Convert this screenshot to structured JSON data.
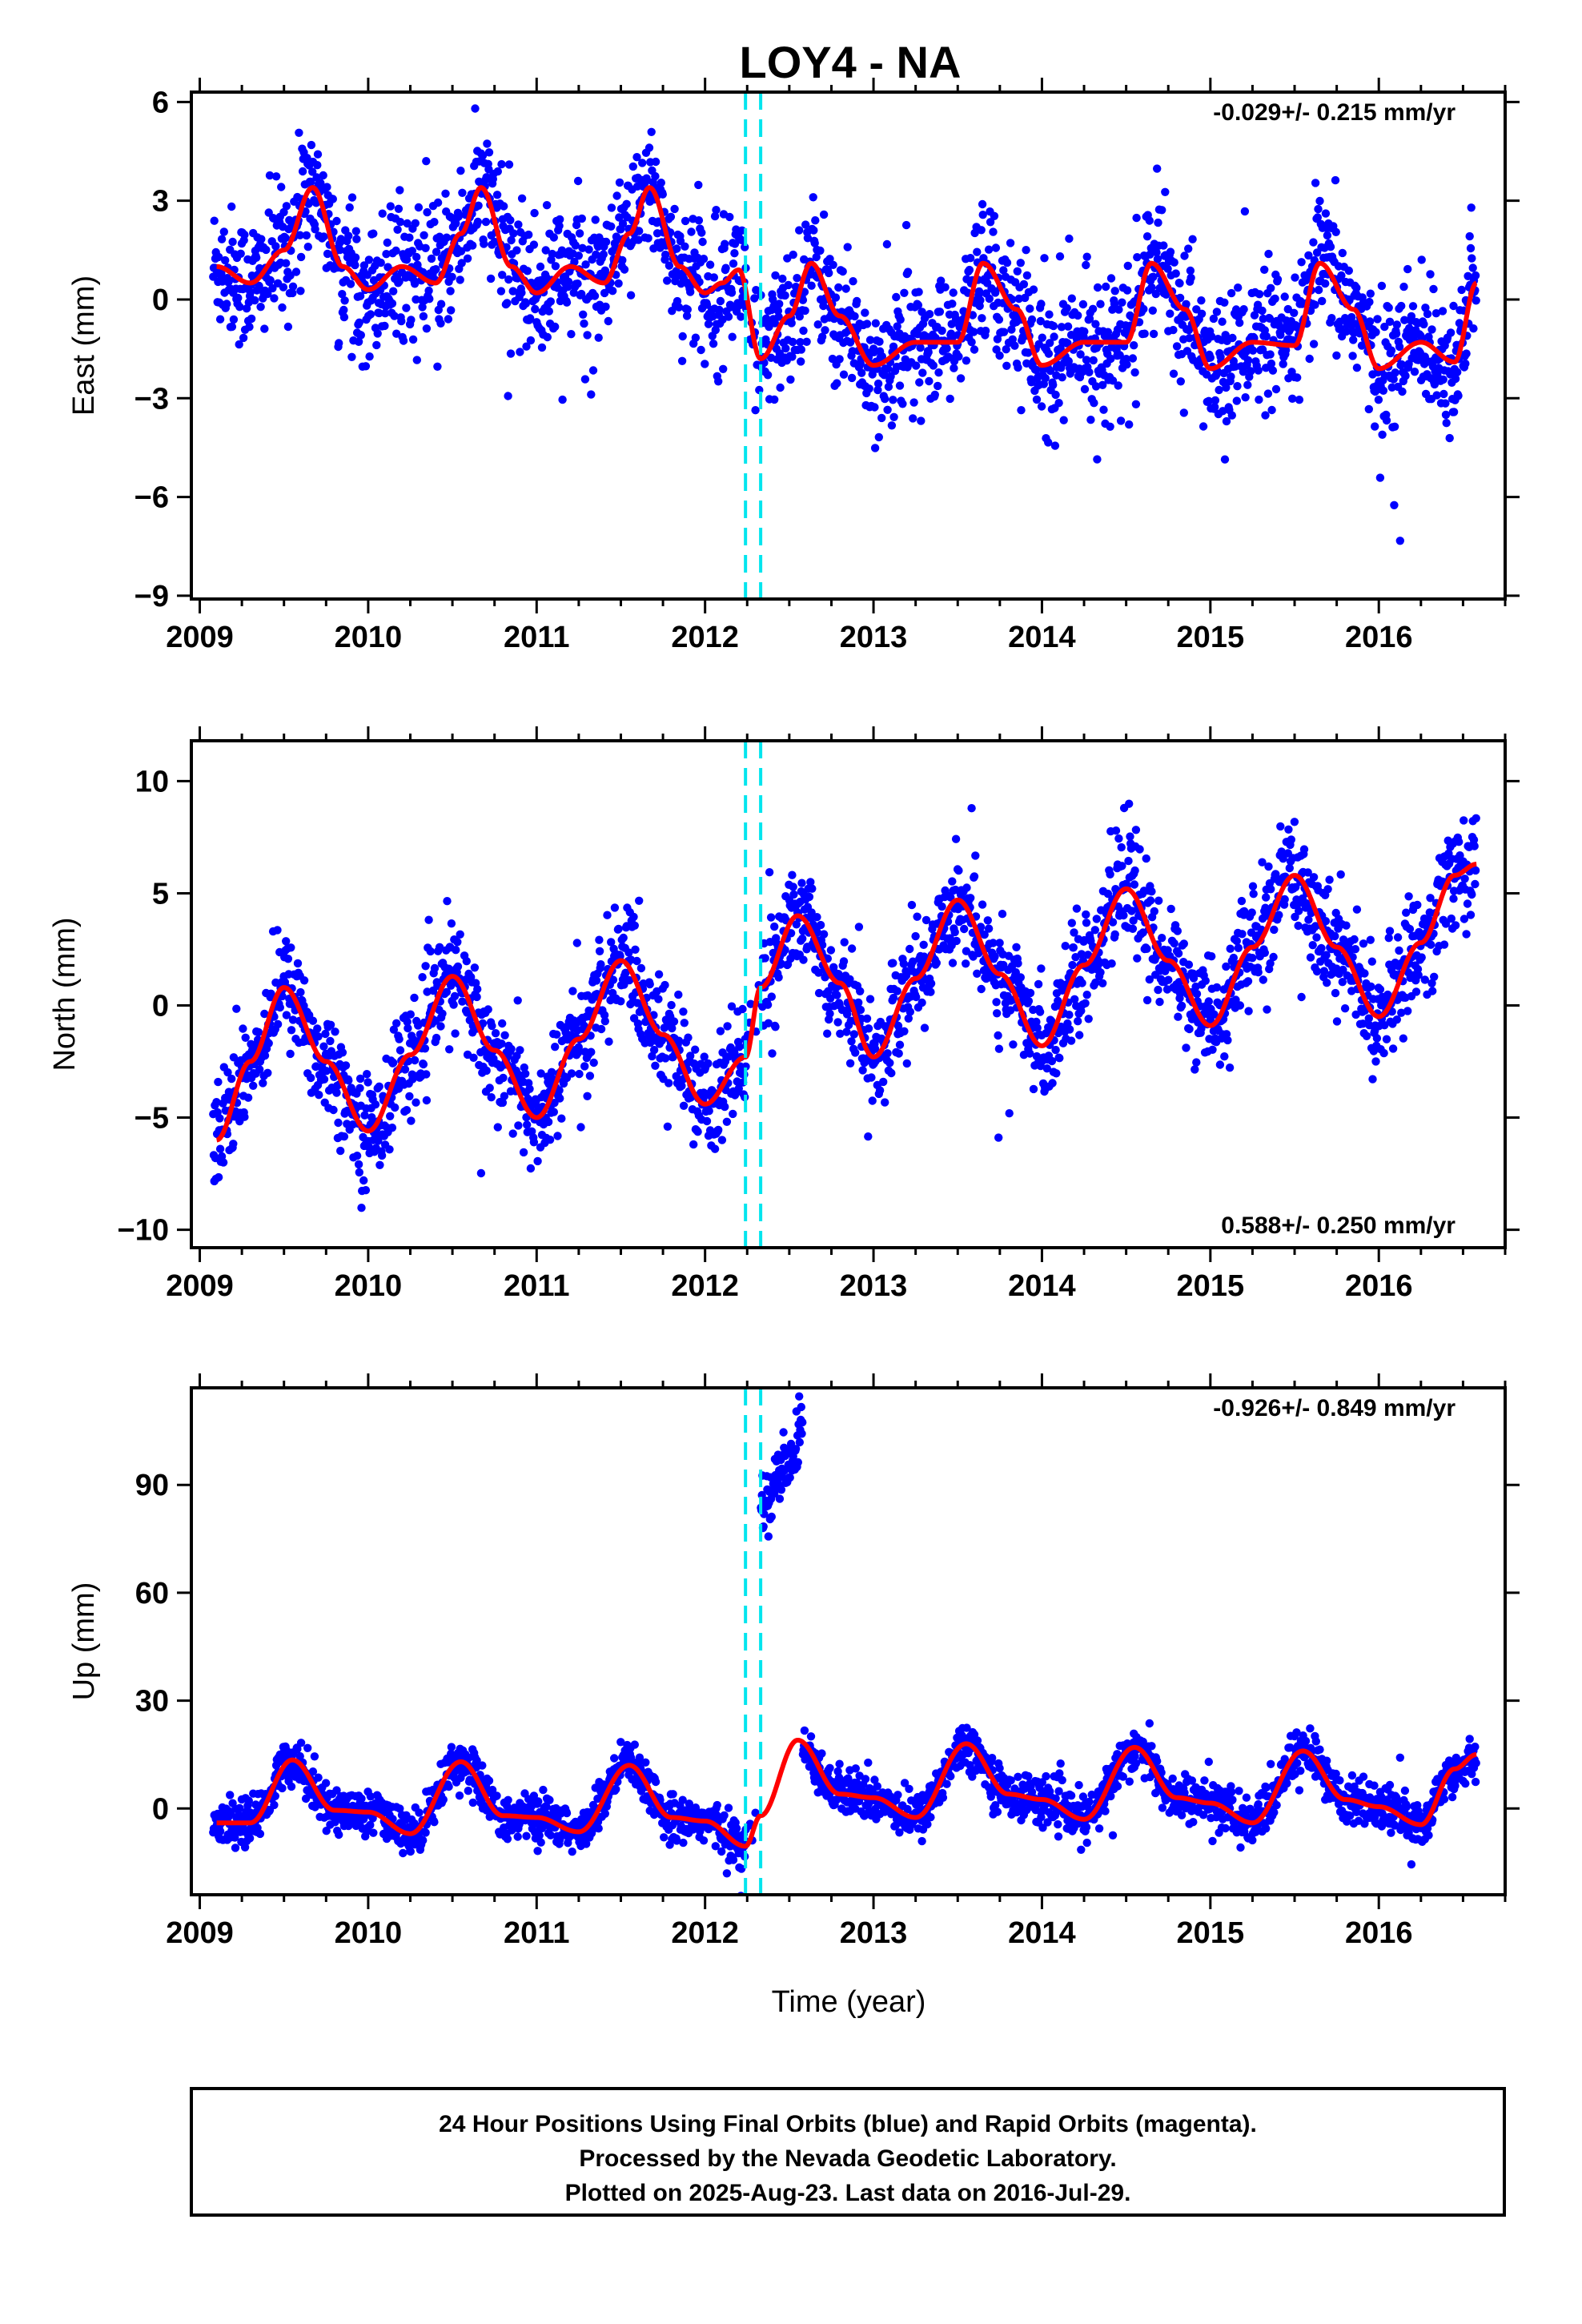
{
  "title": "LOY4 - NA",
  "xlabel": "Time (year)",
  "footer": {
    "line1": "24 Hour Positions Using Final Orbits (blue) and Rapid Orbits (magenta).",
    "line2": "Processed by the Nevada Geodetic Laboratory.",
    "line3": "Plotted on 2025-Aug-23. Last data on 2016-Jul-29."
  },
  "colors": {
    "points": "#0000ff",
    "model": "#ff0000",
    "steps": "#00e5ee",
    "frame": "#000000"
  },
  "chart_data": [
    {
      "type": "scatter",
      "component": "east",
      "ylabel": "East (mm)",
      "rate_text": "-0.029+/- 0.215 mm/yr",
      "xlim": [
        2008.95,
        2016.75
      ],
      "ylim": [
        -9.1,
        6.3
      ],
      "xticks": [
        2009,
        2010,
        2011,
        2012,
        2013,
        2014,
        2015,
        2016
      ],
      "yticks": [
        -9,
        -6,
        -3,
        0,
        3,
        6
      ],
      "ytick_labels": [
        "−9",
        "−6",
        "−3",
        "0",
        "3",
        "6"
      ],
      "step_lines": [
        2012.24,
        2012.33
      ],
      "model": {
        "x": [
          2009.1,
          2009.3,
          2009.5,
          2009.67,
          2009.85,
          2010.0,
          2010.2,
          2010.4,
          2010.55,
          2010.67,
          2010.85,
          2011.0,
          2011.2,
          2011.4,
          2011.55,
          2011.67,
          2011.85,
          2012.0,
          2012.1,
          2012.2,
          2012.33,
          2012.5,
          2012.63,
          2012.8,
          2013.0,
          2013.25,
          2013.5,
          2013.65,
          2013.85,
          2014.0,
          2014.25,
          2014.5,
          2014.65,
          2014.85,
          2015.0,
          2015.25,
          2015.5,
          2015.65,
          2015.85,
          2016.0,
          2016.25,
          2016.45,
          2016.58
        ],
        "y": [
          1.0,
          0.5,
          1.5,
          3.4,
          1.0,
          0.3,
          1.0,
          0.5,
          2.0,
          3.4,
          1.0,
          0.2,
          1.0,
          0.5,
          2.0,
          3.4,
          1.0,
          0.2,
          0.5,
          0.9,
          -1.8,
          -0.5,
          1.1,
          -0.5,
          -2.0,
          -1.3,
          -1.3,
          1.1,
          -0.3,
          -2.0,
          -1.3,
          -1.3,
          1.1,
          -0.3,
          -2.1,
          -1.3,
          -1.4,
          1.1,
          -0.3,
          -2.1,
          -1.3,
          -1.9,
          0.5
        ]
      }
    },
    {
      "type": "scatter",
      "component": "north",
      "ylabel": "North (mm)",
      "rate_text": "0.588+/- 0.250 mm/yr",
      "xlim": [
        2008.95,
        2016.75
      ],
      "ylim": [
        -10.8,
        11.8
      ],
      "xticks": [
        2009,
        2010,
        2011,
        2012,
        2013,
        2014,
        2015,
        2016
      ],
      "yticks": [
        -10,
        -5,
        0,
        5,
        10
      ],
      "ytick_labels": [
        "−10",
        "−5",
        "0",
        "5",
        "10"
      ],
      "step_lines": [
        2012.24,
        2012.33
      ],
      "model": {
        "x": [
          2009.1,
          2009.3,
          2009.5,
          2009.75,
          2010.0,
          2010.25,
          2010.5,
          2010.75,
          2011.0,
          2011.25,
          2011.5,
          2011.75,
          2012.0,
          2012.24,
          2012.33,
          2012.55,
          2012.8,
          2013.0,
          2013.25,
          2013.5,
          2013.75,
          2014.0,
          2014.25,
          2014.5,
          2014.75,
          2015.0,
          2015.25,
          2015.5,
          2015.75,
          2016.0,
          2016.25,
          2016.45,
          2016.58
        ],
        "y": [
          -6.0,
          -2.5,
          0.8,
          -2.5,
          -5.6,
          -2.2,
          1.3,
          -2.0,
          -5.0,
          -1.5,
          2.0,
          -1.3,
          -4.4,
          -2.3,
          0.8,
          4.0,
          1.0,
          -2.3,
          1.2,
          4.7,
          1.4,
          -1.8,
          1.8,
          5.2,
          2.0,
          -0.9,
          2.6,
          5.8,
          2.6,
          -0.5,
          2.8,
          5.8,
          6.3
        ]
      }
    },
    {
      "type": "scatter",
      "component": "up",
      "ylabel": "Up (mm)",
      "rate_text": "-0.926+/- 0.849 mm/yr",
      "xlim": [
        2008.95,
        2016.75
      ],
      "ylim": [
        -24,
        117
      ],
      "xticks": [
        2009,
        2010,
        2011,
        2012,
        2013,
        2014,
        2015,
        2016
      ],
      "yticks": [
        0,
        30,
        60,
        90
      ],
      "ytick_labels": [
        "0",
        "30",
        "60",
        "90"
      ],
      "step_lines": [
        2012.24,
        2012.33
      ],
      "model": {
        "x": [
          2009.1,
          2009.3,
          2009.55,
          2009.8,
          2010.0,
          2010.25,
          2010.55,
          2010.8,
          2011.0,
          2011.25,
          2011.55,
          2011.8,
          2012.0,
          2012.24,
          2012.33,
          2012.55,
          2012.8,
          2013.0,
          2013.25,
          2013.55,
          2013.8,
          2014.0,
          2014.25,
          2014.55,
          2014.8,
          2015.0,
          2015.25,
          2015.55,
          2015.8,
          2016.0,
          2016.25,
          2016.45,
          2016.58
        ],
        "y": [
          -4.0,
          -4.0,
          13.5,
          -0.5,
          -1.0,
          -7.0,
          13.0,
          -2.0,
          -2.5,
          -6.5,
          12.0,
          -2.5,
          -3.5,
          -10.5,
          -2.0,
          19.0,
          4.0,
          3.0,
          -2.5,
          18.0,
          4.0,
          2.5,
          -3.0,
          17.0,
          3.0,
          1.5,
          -4.0,
          16.0,
          2.5,
          0.5,
          -4.5,
          11.0,
          15.0
        ]
      },
      "outlier_cluster": {
        "x_range": [
          2012.33,
          2012.58
        ],
        "y_range": [
          82,
          113
        ]
      }
    }
  ]
}
